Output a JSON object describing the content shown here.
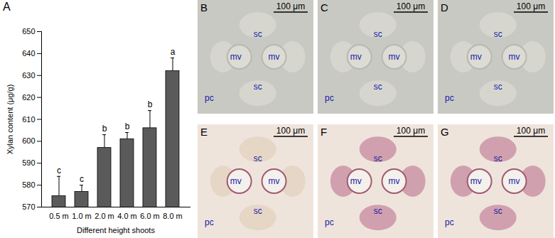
{
  "chart_data": {
    "type": "bar",
    "title": "A",
    "categories": [
      "0.5 m",
      "1.0 m",
      "2.0 m",
      "4.0 m",
      "6.0 m",
      "8.0 m"
    ],
    "values": [
      575,
      577,
      597,
      601,
      606,
      632
    ],
    "errors": [
      9,
      3,
      6,
      3,
      8,
      6
    ],
    "significance": [
      "c",
      "c",
      "b",
      "b",
      "b",
      "a"
    ],
    "color": "#5a5a5a",
    "xlabel": "Different height shoots",
    "ylabel": "Xylan content (μg/g)",
    "ylim": [
      570,
      650
    ],
    "yticks": [
      570,
      580,
      590,
      600,
      610,
      620,
      630,
      640,
      650
    ],
    "grid": false
  },
  "images": [
    {
      "label": "B",
      "scale_bar": "100 μm",
      "annotations": [
        "sc",
        "mv",
        "mv",
        "sc",
        "pc"
      ]
    },
    {
      "label": "C",
      "scale_bar": "100 μm",
      "annotations": [
        "sc",
        "mv",
        "mv",
        "sc",
        "pc"
      ]
    },
    {
      "label": "D",
      "scale_bar": "100 μm",
      "annotations": [
        "sc",
        "mv",
        "mv",
        "sc",
        "pc"
      ]
    },
    {
      "label": "E",
      "scale_bar": "100 μm",
      "annotations": [
        "sc",
        "mv",
        "mv",
        "sc",
        "pc"
      ]
    },
    {
      "label": "F",
      "scale_bar": "100 μm",
      "annotations": [
        "sc",
        "mv",
        "mv",
        "sc",
        "pc"
      ]
    },
    {
      "label": "G",
      "scale_bar": "100 μm",
      "annotations": [
        "sc",
        "mv",
        "mv",
        "sc",
        "pc"
      ]
    }
  ]
}
